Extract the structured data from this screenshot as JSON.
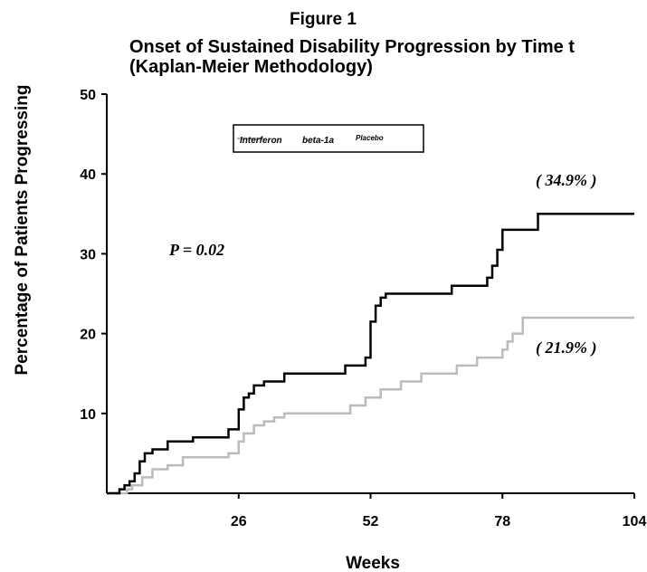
{
  "chart_data": {
    "type": "line",
    "step": true,
    "figure_label": "Figure 1",
    "title_line1": "Onset of Sustained Disability Progression by Time t",
    "title_line2": "(Kaplan-Meier Methodology)",
    "xlabel": "Weeks",
    "ylabel": "Percentage of Patients Progressing",
    "xlim": [
      0,
      104
    ],
    "ylim": [
      0,
      50
    ],
    "xticks": [
      26,
      52,
      78,
      104
    ],
    "yticks": [
      10,
      20,
      30,
      40,
      50
    ],
    "grid": false,
    "legend": {
      "placement": "top-center",
      "entries": [
        "Interferon",
        "beta-1a",
        "Placebo"
      ]
    },
    "annotations": {
      "p_value": "P = 0.02",
      "placebo_final": "( 34.9% )",
      "interferon_final": "( 21.9% )"
    },
    "series": [
      {
        "color": "#000000",
        "x": [
          0,
          2.5,
          3.5,
          4.5,
          5.5,
          6.5,
          7.5,
          9,
          12,
          17,
          24,
          26,
          27,
          28,
          29,
          31,
          35,
          47,
          51,
          52,
          53,
          54,
          55,
          68,
          75,
          76,
          77,
          78,
          85,
          104
        ],
        "y": [
          0,
          0.5,
          1,
          1.5,
          2.5,
          4,
          5,
          5.5,
          6.5,
          7,
          8,
          10.5,
          12,
          12.5,
          13.5,
          14,
          15,
          16,
          17,
          21.5,
          23.5,
          24.5,
          25,
          26,
          27,
          28.5,
          30.5,
          33,
          35,
          35
        ]
      },
      {
        "color": "#bbbbbb",
        "x": [
          0,
          4,
          5,
          7,
          9,
          12,
          15,
          24,
          26,
          27,
          29,
          31,
          33,
          35,
          48,
          51,
          54,
          58,
          62,
          69,
          73,
          78,
          79,
          80,
          82,
          104
        ],
        "y": [
          0,
          0.5,
          1,
          2,
          3,
          3.5,
          4.5,
          5,
          6.5,
          7.5,
          8.5,
          9,
          9.5,
          10,
          11,
          12,
          13,
          14,
          15,
          16,
          17,
          18,
          19,
          20,
          22,
          22
        ]
      }
    ]
  }
}
